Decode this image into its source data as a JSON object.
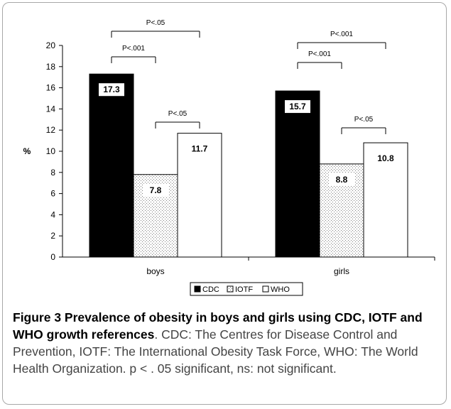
{
  "chart_data": {
    "type": "bar",
    "categories": [
      "boys",
      "girls"
    ],
    "series": [
      {
        "name": "CDC",
        "values": [
          17.3,
          15.7
        ],
        "fill": "#000000",
        "pattern": "solid"
      },
      {
        "name": "IOTF",
        "values": [
          7.8,
          8.8
        ],
        "fill": "#ffffff",
        "pattern": "dots"
      },
      {
        "name": "WHO",
        "values": [
          11.7,
          10.8
        ],
        "fill": "#ffffff",
        "pattern": "none"
      }
    ],
    "value_labels": [
      [
        "17.3",
        "7.8",
        "11.7"
      ],
      [
        "15.7",
        "8.8",
        "10.8"
      ]
    ],
    "ylabel": "%",
    "ylim": [
      0,
      20
    ],
    "yticks": [
      "0",
      "2",
      "4",
      "6",
      "8",
      "10",
      "12",
      "14",
      "16",
      "18",
      "20"
    ],
    "grid": false,
    "legend_position": "bottom-center",
    "significance": [
      {
        "category": 0,
        "from": 0,
        "to": 2,
        "label": "P<.05",
        "level": "top"
      },
      {
        "category": 0,
        "from": 0,
        "to": 1,
        "label": "P<.001",
        "level": "middle"
      },
      {
        "category": 0,
        "from": 1,
        "to": 2,
        "label": "P<.05",
        "level": "low"
      },
      {
        "category": 1,
        "from": 0,
        "to": 2,
        "label": "P<.001",
        "level": "top"
      },
      {
        "category": 1,
        "from": 0,
        "to": 1,
        "label": "P<.001",
        "level": "middle"
      },
      {
        "category": 1,
        "from": 1,
        "to": 2,
        "label": "P<.05",
        "level": "low"
      }
    ]
  },
  "caption": {
    "bold": "Figure 3 Prevalence of obesity in boys and girls using CDC, IOTF and WHO growth references",
    "rest": ". CDC: The Centres for Disease Control and Prevention, IOTF: The International Obesity Task Force, WHO: The World Health Organization. p < . 05 significant, ns: not significant."
  }
}
